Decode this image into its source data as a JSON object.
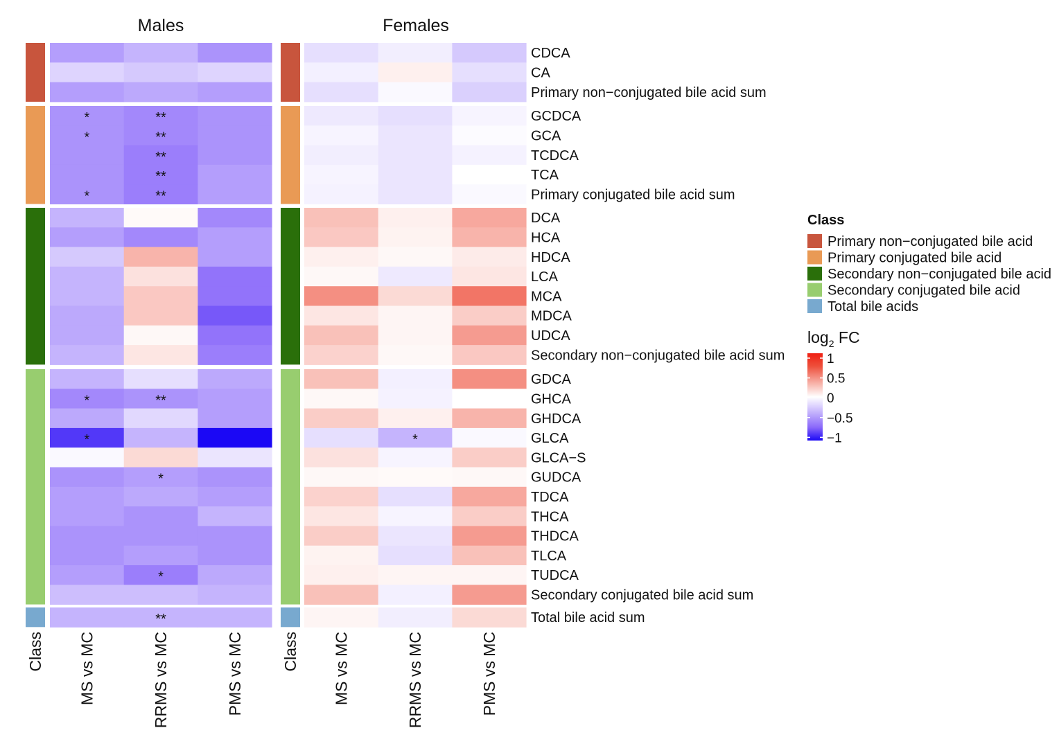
{
  "chart_data": {
    "type": "heatmap",
    "panels": [
      {
        "title": "Males",
        "columns": [
          "MS vs MC",
          "RRMS vs MC",
          "PMS vs MC"
        ],
        "values": [
          [
            -0.45,
            -0.35,
            -0.5
          ],
          [
            -0.2,
            -0.25,
            -0.2
          ],
          [
            -0.45,
            -0.4,
            -0.45
          ],
          [
            -0.5,
            -0.55,
            -0.5
          ],
          [
            -0.5,
            -0.55,
            -0.5
          ],
          [
            -0.5,
            -0.6,
            -0.5
          ],
          [
            -0.5,
            -0.6,
            -0.45
          ],
          [
            -0.5,
            -0.6,
            -0.45
          ],
          [
            -0.35,
            0.02,
            -0.55
          ],
          [
            -0.45,
            -0.55,
            -0.45
          ],
          [
            -0.25,
            0.3,
            -0.45
          ],
          [
            -0.35,
            0.12,
            -0.65
          ],
          [
            -0.35,
            0.22,
            -0.65
          ],
          [
            -0.4,
            0.22,
            -0.75
          ],
          [
            -0.4,
            0.03,
            -0.65
          ],
          [
            -0.35,
            0.1,
            -0.6
          ],
          [
            -0.35,
            -0.15,
            -0.4
          ],
          [
            -0.55,
            -0.5,
            -0.45
          ],
          [
            -0.4,
            -0.18,
            -0.45
          ],
          [
            -0.85,
            -0.35,
            -1.0
          ],
          [
            -0.03,
            0.15,
            -0.12
          ],
          [
            -0.5,
            -0.45,
            -0.5
          ],
          [
            -0.45,
            -0.4,
            -0.45
          ],
          [
            -0.45,
            -0.5,
            -0.35
          ],
          [
            -0.5,
            -0.5,
            -0.5
          ],
          [
            -0.5,
            -0.45,
            -0.5
          ],
          [
            -0.45,
            -0.6,
            -0.4
          ],
          [
            -0.3,
            -0.3,
            -0.35
          ],
          [
            -0.35,
            -0.35,
            -0.35
          ]
        ],
        "stars": [
          [
            "",
            "",
            ""
          ],
          [
            "",
            "",
            ""
          ],
          [
            "",
            "",
            ""
          ],
          [
            "*",
            "**",
            ""
          ],
          [
            "*",
            "**",
            ""
          ],
          [
            "",
            "**",
            ""
          ],
          [
            "",
            "**",
            ""
          ],
          [
            "*",
            "**",
            ""
          ],
          [
            "",
            "",
            ""
          ],
          [
            "",
            "",
            ""
          ],
          [
            "",
            "",
            ""
          ],
          [
            "",
            "",
            ""
          ],
          [
            "",
            "",
            ""
          ],
          [
            "",
            "",
            ""
          ],
          [
            "",
            "",
            ""
          ],
          [
            "",
            "",
            ""
          ],
          [
            "",
            "",
            ""
          ],
          [
            "*",
            "**",
            ""
          ],
          [
            "",
            "",
            ""
          ],
          [
            "*",
            "",
            ""
          ],
          [
            "",
            "",
            ""
          ],
          [
            "",
            "*",
            ""
          ],
          [
            "",
            "",
            ""
          ],
          [
            "",
            "",
            ""
          ],
          [
            "",
            "",
            ""
          ],
          [
            "",
            "",
            ""
          ],
          [
            "",
            "*",
            ""
          ],
          [
            "",
            "",
            ""
          ],
          [
            "",
            "**",
            ""
          ]
        ]
      },
      {
        "title": "Females",
        "columns": [
          "MS vs MC",
          "RRMS vs MC",
          "PMS vs MC"
        ],
        "values": [
          [
            -0.15,
            -0.08,
            -0.25
          ],
          [
            -0.07,
            0.06,
            -0.15
          ],
          [
            -0.15,
            -0.03,
            -0.22
          ],
          [
            -0.1,
            -0.15,
            -0.05
          ],
          [
            -0.05,
            -0.12,
            -0.02
          ],
          [
            -0.08,
            -0.12,
            -0.06
          ],
          [
            -0.05,
            -0.12,
            0.0
          ],
          [
            -0.06,
            -0.12,
            -0.03
          ],
          [
            0.25,
            0.06,
            0.35
          ],
          [
            0.22,
            0.05,
            0.3
          ],
          [
            0.06,
            0.03,
            0.08
          ],
          [
            0.03,
            -0.1,
            0.1
          ],
          [
            0.45,
            0.15,
            0.55
          ],
          [
            0.1,
            0.04,
            0.2
          ],
          [
            0.25,
            0.04,
            0.4
          ],
          [
            0.18,
            0.03,
            0.22
          ],
          [
            0.25,
            -0.07,
            0.45
          ],
          [
            0.03,
            -0.06,
            0.0
          ],
          [
            0.2,
            0.06,
            0.3
          ],
          [
            -0.15,
            -0.35,
            -0.03
          ],
          [
            0.12,
            -0.05,
            0.2
          ],
          [
            0.03,
            0.02,
            0.03
          ],
          [
            0.18,
            -0.15,
            0.35
          ],
          [
            0.1,
            -0.05,
            0.2
          ],
          [
            0.2,
            -0.12,
            0.4
          ],
          [
            0.05,
            -0.15,
            0.25
          ],
          [
            0.06,
            0.04,
            0.04
          ],
          [
            0.25,
            -0.07,
            0.4
          ],
          [
            0.04,
            -0.08,
            0.15
          ]
        ],
        "stars": [
          [
            "",
            "",
            ""
          ],
          [
            "",
            "",
            ""
          ],
          [
            "",
            "",
            ""
          ],
          [
            "",
            "",
            ""
          ],
          [
            "",
            "",
            ""
          ],
          [
            "",
            "",
            ""
          ],
          [
            "",
            "",
            ""
          ],
          [
            "",
            "",
            ""
          ],
          [
            "",
            "",
            ""
          ],
          [
            "",
            "",
            ""
          ],
          [
            "",
            "",
            ""
          ],
          [
            "",
            "",
            ""
          ],
          [
            "",
            "",
            ""
          ],
          [
            "",
            "",
            ""
          ],
          [
            "",
            "",
            ""
          ],
          [
            "",
            "",
            ""
          ],
          [
            "",
            "",
            ""
          ],
          [
            "",
            "",
            ""
          ],
          [
            "",
            "",
            ""
          ],
          [
            "",
            "*",
            ""
          ],
          [
            "",
            "",
            ""
          ],
          [
            "",
            "",
            ""
          ],
          [
            "",
            "",
            ""
          ],
          [
            "",
            "",
            ""
          ],
          [
            "",
            "",
            ""
          ],
          [
            "",
            "",
            ""
          ],
          [
            "",
            "",
            ""
          ],
          [
            "",
            "",
            ""
          ],
          [
            "",
            "",
            ""
          ]
        ]
      }
    ],
    "rows": [
      "CDCA",
      "CA",
      "Primary non−conjugated bile acid sum",
      "GCDCA",
      "GCA",
      "TCDCA",
      "TCA",
      "Primary conjugated bile acid sum",
      "DCA",
      "HCA",
      "HDCA",
      "LCA",
      "MCA",
      "MDCA",
      "UDCA",
      "Secondary non−conjugated bile acid sum",
      "GDCA",
      "GHCA",
      "GHDCA",
      "GLCA",
      "GLCA−S",
      "GUDCA",
      "TDCA",
      "THCA",
      "THDCA",
      "TLCA",
      "TUDCA",
      "Secondary conjugated bile acid sum",
      "Total bile acid sum"
    ],
    "groups": [
      {
        "class": "Primary non−conjugated bile acid",
        "rows": 3,
        "color": "#c8553d"
      },
      {
        "class": "Primary conjugated bile acid",
        "rows": 5,
        "color": "#e99a55"
      },
      {
        "class": "Secondary non−conjugated bile acid",
        "rows": 8,
        "color": "#2a6f0a"
      },
      {
        "class": "Secondary conjugated bile acid",
        "rows": 12,
        "color": "#98cd6f"
      },
      {
        "class": "Total bile acids",
        "rows": 1,
        "color": "#78a9cf"
      }
    ],
    "class_axis_label": "Class",
    "legend_class_title": "Class",
    "legend_scale_title_main": "log",
    "legend_scale_title_sub": "2",
    "legend_scale_title_tail": " FC",
    "scale": {
      "min": -1,
      "max": 1,
      "ticks": [
        "1",
        "0.5",
        "0",
        "−0.5",
        "−1"
      ],
      "colors": {
        "low": "#1b08f5",
        "mid": "#ffffff",
        "high": "#ef1f12"
      }
    }
  }
}
